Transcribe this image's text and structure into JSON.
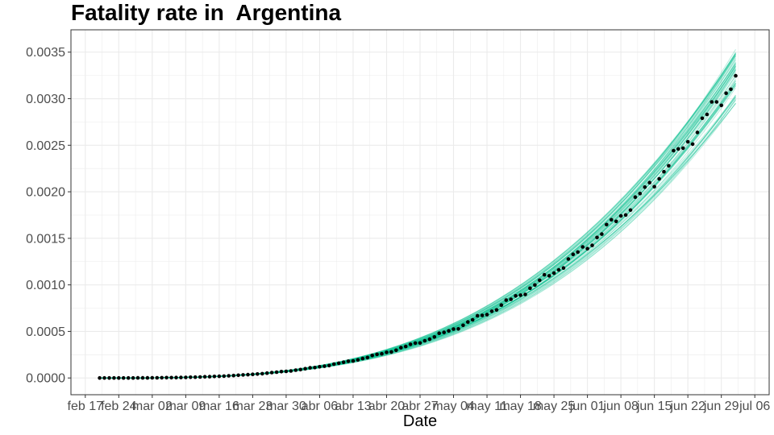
{
  "chart_data": {
    "type": "line",
    "title": "Fatality rate in  Argentina",
    "xlabel": "Date",
    "ylabel": "",
    "x_ticks": [
      "feb 17",
      "feb 24",
      "mar 02",
      "mar 09",
      "mar 16",
      "mar 23",
      "mar 30",
      "abr 06",
      "abr 13",
      "abr 20",
      "abr 27",
      "may 04",
      "may 11",
      "may 18",
      "may 25",
      "jun 01",
      "jun 08",
      "jun 15",
      "jun 22",
      "jun 29",
      "jul 06"
    ],
    "y_ticks": [
      "0.0000",
      "0.0005",
      "0.0010",
      "0.0015",
      "0.0020",
      "0.0025",
      "0.0030",
      "0.0035"
    ],
    "ylim": [
      -0.00018,
      0.00374
    ],
    "xlim": [
      "2020-02-14",
      "2020-07-09"
    ],
    "grid": true,
    "observed": {
      "x_start": "2020-02-20",
      "x_end": "2020-07-02",
      "y_end": 0.00324,
      "growth_exponent": 3.1,
      "color": "#000000"
    },
    "simulations": {
      "count": 60,
      "spread": 0.09,
      "color": "#00BF8C"
    },
    "colors": {
      "background": "#ffffff",
      "grid": "#ebebeb",
      "border": "#333333"
    }
  }
}
